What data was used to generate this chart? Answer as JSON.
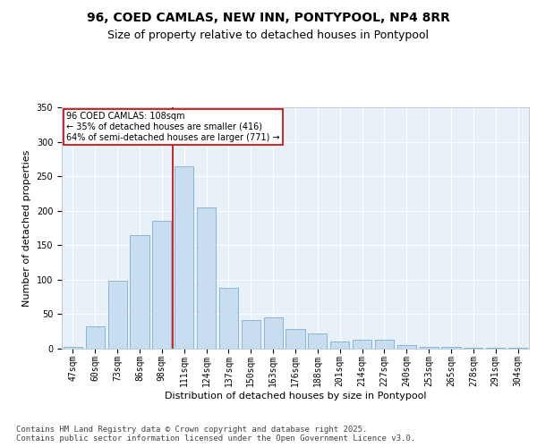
{
  "title1": "96, COED CAMLAS, NEW INN, PONTYPOOL, NP4 8RR",
  "title2": "Size of property relative to detached houses in Pontypool",
  "xlabel": "Distribution of detached houses by size in Pontypool",
  "ylabel": "Number of detached properties",
  "categories": [
    "47sqm",
    "60sqm",
    "73sqm",
    "86sqm",
    "98sqm",
    "111sqm",
    "124sqm",
    "137sqm",
    "150sqm",
    "163sqm",
    "176sqm",
    "188sqm",
    "201sqm",
    "214sqm",
    "227sqm",
    "240sqm",
    "253sqm",
    "265sqm",
    "278sqm",
    "291sqm",
    "304sqm"
  ],
  "values": [
    3,
    33,
    99,
    165,
    185,
    265,
    205,
    88,
    42,
    45,
    28,
    22,
    10,
    13,
    13,
    5,
    3,
    2,
    1,
    1,
    1
  ],
  "bar_color": "#c9ddf0",
  "bar_edge_color": "#7bafd4",
  "vline_x_index": 5,
  "vline_color": "#cc0000",
  "annotation_text": "96 COED CAMLAS: 108sqm\n← 35% of detached houses are smaller (416)\n64% of semi-detached houses are larger (771) →",
  "annotation_box_color": "#ffffff",
  "annotation_box_edge": "#cc0000",
  "ylim": [
    0,
    350
  ],
  "yticks": [
    0,
    50,
    100,
    150,
    200,
    250,
    300,
    350
  ],
  "footnote": "Contains HM Land Registry data © Crown copyright and database right 2025.\nContains public sector information licensed under the Open Government Licence v3.0.",
  "plot_background": "#e8f0f8",
  "title_fontsize": 10,
  "subtitle_fontsize": 9,
  "axis_label_fontsize": 8,
  "tick_fontsize": 7,
  "footnote_fontsize": 6.5
}
